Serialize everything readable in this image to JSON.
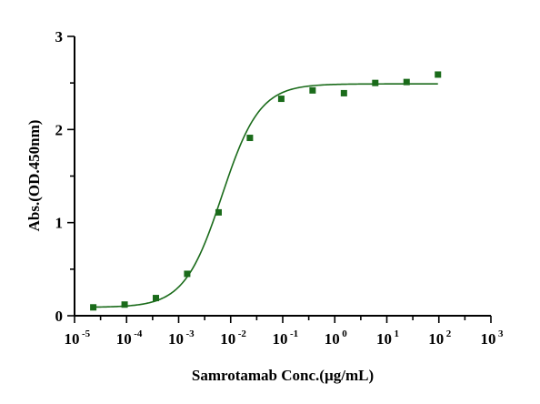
{
  "chart_data": {
    "type": "scatter",
    "title": "",
    "xlabel": "Samrotamab Conc.(µg/mL)",
    "ylabel": "Abs.(OD.450nm)",
    "xscale": "log",
    "xlim": [
      1e-05,
      1000
    ],
    "ylim": [
      0,
      3
    ],
    "x_tick_labels": [
      {
        "base": "10",
        "exp": "-5"
      },
      {
        "base": "10",
        "exp": "-4"
      },
      {
        "base": "10",
        "exp": "-3"
      },
      {
        "base": "10",
        "exp": "-2"
      },
      {
        "base": "10",
        "exp": "-1"
      },
      {
        "base": "10",
        "exp": "0"
      },
      {
        "base": "10",
        "exp": "1"
      },
      {
        "base": "10",
        "exp": "2"
      },
      {
        "base": "10",
        "exp": "3"
      }
    ],
    "y_tick_labels": [
      "0",
      "1",
      "2",
      "3"
    ],
    "grid": false,
    "legend": "none",
    "series": [
      {
        "color": "#1a6b1a",
        "marker": "square",
        "points": [
          {
            "x": 2.29e-05,
            "y": 0.09
          },
          {
            "x": 9.16e-05,
            "y": 0.12
          },
          {
            "x": 0.000366,
            "y": 0.19
          },
          {
            "x": 0.00146,
            "y": 0.45
          },
          {
            "x": 0.00586,
            "y": 1.11
          },
          {
            "x": 0.0234,
            "y": 1.91
          },
          {
            "x": 0.0938,
            "y": 2.33
          },
          {
            "x": 0.375,
            "y": 2.42
          },
          {
            "x": 1.5,
            "y": 2.39
          },
          {
            "x": 6.0,
            "y": 2.5
          },
          {
            "x": 24.0,
            "y": 2.51
          },
          {
            "x": 96.0,
            "y": 2.59
          }
        ],
        "fit": {
          "model": "4PL",
          "bottom": 0.09,
          "top": 2.49,
          "ec50": 0.0068,
          "hill": 1.2
        }
      }
    ]
  }
}
